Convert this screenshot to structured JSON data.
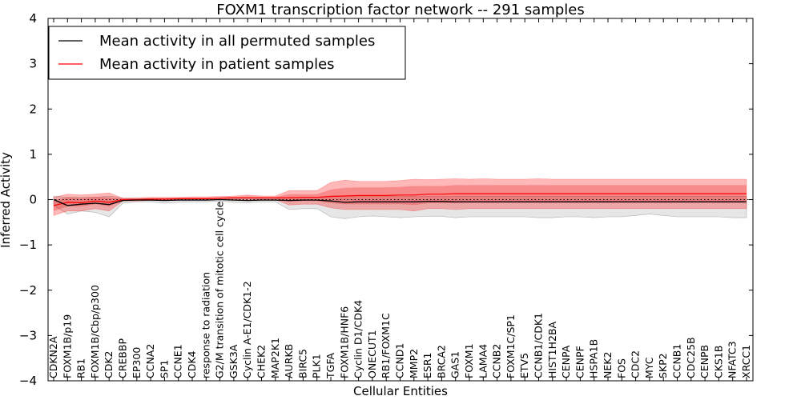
{
  "chart_data": {
    "type": "line",
    "title": "FOXM1 transcription factor network -- 291 samples",
    "xlabel": "Cellular Entities",
    "ylabel": "Inferred Activity",
    "ylim": [
      -4,
      4
    ],
    "yticks": [
      -4,
      -3,
      -2,
      -1,
      0,
      1,
      2,
      3,
      4
    ],
    "ytick_labels": [
      "−4",
      "−3",
      "−2",
      "−1",
      "0",
      "1",
      "2",
      "3",
      "4"
    ],
    "legend_position": "upper-left",
    "reference_line": {
      "y": 0,
      "style": "dotted",
      "color": "#000000"
    },
    "categories": [
      "CDKN2A",
      "FOXM1B/p19",
      "RB1",
      "FOXM1B/Cbp/p300",
      "CDK2",
      "CREBBP",
      "EP300",
      "CCNA2",
      "SP1",
      "CCNE1",
      "CDK4",
      "response to radiation",
      "G2/M transition of mitotic cell cycle",
      "GSK3A",
      "Cyclin A-E1/CDK1-2",
      "CHEK2",
      "MAP2K1",
      "AURKB",
      "BIRC5",
      "PLK1",
      "TGFA",
      "FOXM1B/HNF6",
      "Cyclin D1/CDK4",
      "ONECUT1",
      "RB1/FOXM1C",
      "CCND1",
      "MMP2",
      "ESR1",
      "BRCA2",
      "GAS1",
      "FOXM1",
      "LAMA4",
      "CCNB2",
      "FOXM1C/SP1",
      "ETV5",
      "CCNB1/CDK1",
      "HIST1H2BA",
      "CENPA",
      "CENPF",
      "HSPA1B",
      "NEK2",
      "FOS",
      "CDC2",
      "MYC",
      "SKP2",
      "CCNB1",
      "CDC25B",
      "CENPB",
      "CKS1B",
      "NFATC3",
      "XRCC1"
    ],
    "series": [
      {
        "name": "Mean activity in all permuted samples",
        "color": "#000000",
        "values": [
          0.0,
          -0.13,
          -0.1,
          -0.08,
          -0.11,
          -0.02,
          -0.01,
          -0.01,
          -0.02,
          -0.01,
          -0.01,
          -0.01,
          0.0,
          -0.01,
          -0.02,
          -0.01,
          -0.01,
          -0.02,
          -0.01,
          -0.01,
          -0.03,
          -0.06,
          -0.05,
          -0.05,
          -0.05,
          -0.05,
          -0.05,
          -0.04,
          -0.04,
          -0.05,
          -0.05,
          -0.05,
          -0.05,
          -0.05,
          -0.05,
          -0.05,
          -0.05,
          -0.05,
          -0.05,
          -0.05,
          -0.05,
          -0.05,
          -0.05,
          -0.05,
          -0.05,
          -0.05,
          -0.05,
          -0.05,
          -0.05,
          -0.05,
          -0.05
        ],
        "band_lower": [
          -0.12,
          -0.32,
          -0.25,
          -0.28,
          -0.38,
          -0.08,
          -0.05,
          -0.05,
          -0.08,
          -0.06,
          -0.05,
          -0.05,
          -0.03,
          -0.06,
          -0.07,
          -0.05,
          -0.05,
          -0.22,
          -0.2,
          -0.2,
          -0.38,
          -0.42,
          -0.38,
          -0.36,
          -0.38,
          -0.4,
          -0.38,
          -0.37,
          -0.37,
          -0.4,
          -0.38,
          -0.38,
          -0.38,
          -0.38,
          -0.38,
          -0.4,
          -0.4,
          -0.38,
          -0.38,
          -0.4,
          -0.38,
          -0.38,
          -0.35,
          -0.32,
          -0.35,
          -0.38,
          -0.38,
          -0.38,
          -0.38,
          -0.4,
          -0.4
        ],
        "band_upper": [
          0.08,
          0.05,
          0.05,
          0.05,
          0.08,
          0.03,
          0.02,
          0.02,
          0.02,
          0.02,
          0.02,
          0.02,
          0.03,
          0.02,
          0.02,
          0.02,
          0.02,
          0.05,
          0.05,
          0.05,
          0.08,
          0.08,
          0.07,
          0.07,
          0.07,
          0.07,
          0.07,
          0.07,
          0.07,
          0.07,
          0.07,
          0.07,
          0.07,
          0.07,
          0.07,
          0.07,
          0.07,
          0.07,
          0.07,
          0.07,
          0.07,
          0.07,
          0.07,
          0.07,
          0.07,
          0.07,
          0.07,
          0.07,
          0.07,
          0.07,
          0.07
        ]
      },
      {
        "name": "Mean activity in patient samples",
        "color": "#ff0000",
        "values": [
          -0.13,
          -0.06,
          -0.07,
          -0.03,
          -0.06,
          0.0,
          0.0,
          0.01,
          0.01,
          0.02,
          0.02,
          0.02,
          0.03,
          0.04,
          0.04,
          0.04,
          0.04,
          0.04,
          0.05,
          0.05,
          0.07,
          0.08,
          0.09,
          0.09,
          0.09,
          0.1,
          0.1,
          0.12,
          0.12,
          0.13,
          0.13,
          0.13,
          0.13,
          0.13,
          0.13,
          0.13,
          0.13,
          0.13,
          0.13,
          0.13,
          0.13,
          0.13,
          0.13,
          0.13,
          0.13,
          0.13,
          0.13,
          0.13,
          0.13,
          0.13,
          0.13
        ],
        "band_lower": [
          -0.35,
          -0.25,
          -0.25,
          -0.2,
          -0.25,
          -0.03,
          -0.03,
          -0.02,
          -0.02,
          -0.01,
          -0.01,
          -0.01,
          0.0,
          0.0,
          0.0,
          0.0,
          0.0,
          -0.12,
          -0.1,
          -0.1,
          -0.18,
          -0.22,
          -0.22,
          -0.22,
          -0.22,
          -0.22,
          -0.25,
          -0.2,
          -0.2,
          -0.22,
          -0.2,
          -0.2,
          -0.2,
          -0.2,
          -0.2,
          -0.2,
          -0.2,
          -0.2,
          -0.2,
          -0.2,
          -0.2,
          -0.2,
          -0.2,
          -0.2,
          -0.2,
          -0.2,
          -0.2,
          -0.2,
          -0.2,
          -0.2,
          -0.2
        ],
        "band_upper": [
          0.05,
          0.12,
          0.1,
          0.12,
          0.15,
          0.03,
          0.04,
          0.05,
          0.05,
          0.05,
          0.06,
          0.06,
          0.07,
          0.08,
          0.1,
          0.08,
          0.08,
          0.2,
          0.2,
          0.2,
          0.38,
          0.43,
          0.4,
          0.4,
          0.4,
          0.42,
          0.45,
          0.44,
          0.45,
          0.46,
          0.45,
          0.46,
          0.45,
          0.45,
          0.45,
          0.46,
          0.45,
          0.45,
          0.45,
          0.45,
          0.45,
          0.45,
          0.45,
          0.45,
          0.45,
          0.45,
          0.45,
          0.45,
          0.45,
          0.45,
          0.45
        ],
        "inner_band_lower": [
          -0.25,
          -0.15,
          -0.15,
          -0.1,
          -0.15,
          -0.02,
          -0.02,
          -0.01,
          -0.01,
          0.0,
          0.0,
          0.0,
          0.01,
          0.02,
          0.02,
          0.02,
          0.02,
          -0.05,
          -0.03,
          -0.03,
          -0.08,
          -0.1,
          -0.1,
          -0.1,
          -0.1,
          -0.1,
          -0.12,
          -0.08,
          -0.08,
          -0.08,
          -0.07,
          -0.07,
          -0.07,
          -0.07,
          -0.07,
          -0.07,
          -0.07,
          -0.07,
          -0.07,
          -0.07,
          -0.07,
          -0.07,
          -0.07,
          -0.07,
          -0.07,
          -0.07,
          -0.07,
          -0.07,
          -0.07,
          -0.07,
          -0.07
        ],
        "inner_band_upper": [
          -0.02,
          0.05,
          0.03,
          0.06,
          0.05,
          0.02,
          0.02,
          0.03,
          0.03,
          0.04,
          0.04,
          0.04,
          0.05,
          0.06,
          0.07,
          0.06,
          0.06,
          0.12,
          0.12,
          0.12,
          0.22,
          0.26,
          0.27,
          0.27,
          0.27,
          0.28,
          0.3,
          0.3,
          0.3,
          0.32,
          0.32,
          0.32,
          0.32,
          0.32,
          0.32,
          0.32,
          0.32,
          0.32,
          0.32,
          0.32,
          0.32,
          0.32,
          0.32,
          0.32,
          0.32,
          0.32,
          0.32,
          0.32,
          0.32,
          0.32,
          0.32
        ]
      }
    ]
  }
}
